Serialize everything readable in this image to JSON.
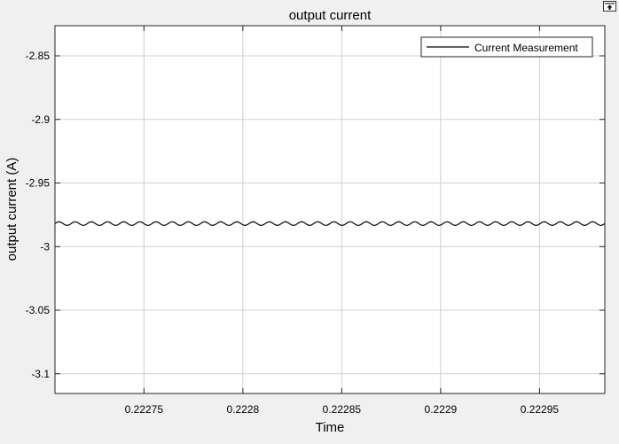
{
  "window": {
    "undock_icon": "undock-arrow-icon"
  },
  "chart_data": {
    "type": "line",
    "title": "output current",
    "xlabel": "Time",
    "ylabel": "output current (A)",
    "xlim": [
      0.222705,
      0.222983
    ],
    "ylim": [
      -3.1155,
      -2.8263
    ],
    "xticks": [
      0.22275,
      0.2228,
      0.22285,
      0.2229,
      0.22295
    ],
    "xtick_labels": [
      "0.22275",
      "0.2228",
      "0.22285",
      "0.2229",
      "0.22295"
    ],
    "yticks": [
      -2.85,
      -2.9,
      -2.95,
      -3,
      -3.05,
      -3.1
    ],
    "ytick_labels": [
      "-2.85",
      "-2.9",
      "-2.95",
      "-3",
      "-3.05",
      "-3.1"
    ],
    "grid": true,
    "legend_position": "top-right",
    "series": [
      {
        "name": "Current Measurement",
        "color": "#000000",
        "mean": -2.9819,
        "amplitude": 0.0014,
        "oscillation_count": 34
      }
    ]
  },
  "colors": {
    "plot_bg": "#ffffff",
    "grid": "#d0d0d0",
    "axes": "#262626",
    "figure_bg": "#f0f0f0"
  }
}
